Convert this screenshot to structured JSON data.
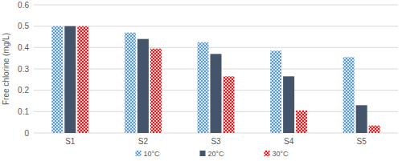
{
  "chart_data": {
    "type": "bar",
    "y_label": "Free chlorine (mg/L)",
    "categories": [
      "S1",
      "S2",
      "S3",
      "S4",
      "S5"
    ],
    "series": [
      {
        "name": "10°C",
        "color": "#5b9bd5",
        "values": [
          0.5,
          0.47,
          0.425,
          0.385,
          0.355
        ]
      },
      {
        "name": "20°C",
        "color": "#44546a",
        "values": [
          0.5,
          0.44,
          0.37,
          0.265,
          0.13
        ]
      },
      {
        "name": "30°C",
        "color": "#e31a1c",
        "values": [
          0.5,
          0.395,
          0.265,
          0.105,
          0.035
        ]
      }
    ],
    "ylim": [
      0,
      0.6
    ],
    "yticks": [
      0,
      0.1,
      0.2,
      0.3,
      0.4,
      0.5,
      0.6
    ],
    "grid": true,
    "legend": "bottom"
  }
}
